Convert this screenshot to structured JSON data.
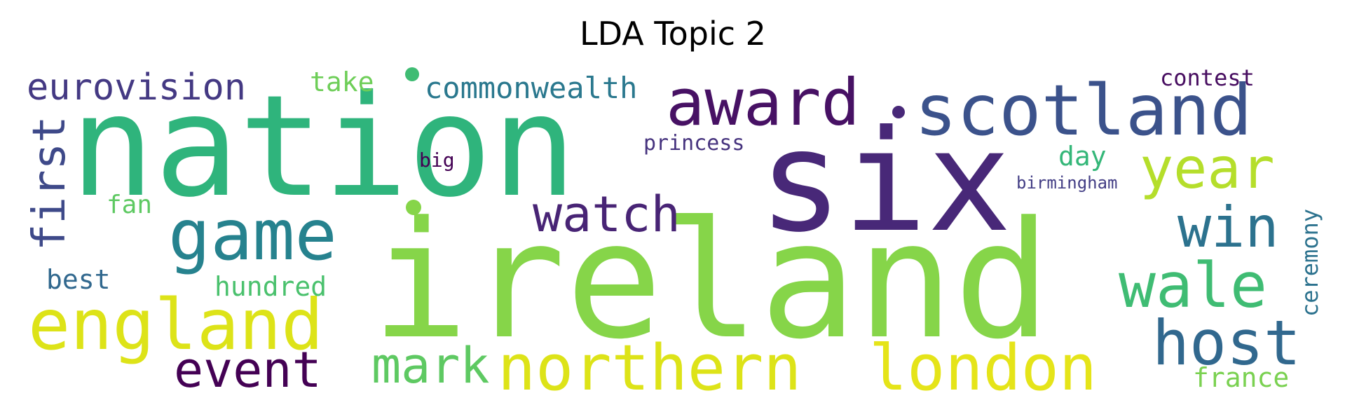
{
  "title": "LDA Topic 2",
  "words": [
    {
      "text": "nation",
      "color": "#2fb47c"
    },
    {
      "text": "ireland",
      "color": "#86d549"
    },
    {
      "text": "six",
      "color": "#482878"
    },
    {
      "text": "scotland",
      "color": "#3b528b"
    },
    {
      "text": "award",
      "color": "#471164"
    },
    {
      "text": "game",
      "color": "#26828e"
    },
    {
      "text": "england",
      "color": "#dde318"
    },
    {
      "text": "watch",
      "color": "#482475"
    },
    {
      "text": "year",
      "color": "#b5de2b"
    },
    {
      "text": "win",
      "color": "#2c728e"
    },
    {
      "text": "wale",
      "color": "#3fbc73"
    },
    {
      "text": "host",
      "color": "#31688e"
    },
    {
      "text": "northern",
      "color": "#dde318"
    },
    {
      "text": "london",
      "color": "#e5e419"
    },
    {
      "text": "mark",
      "color": "#5ec962"
    },
    {
      "text": "event",
      "color": "#440154"
    },
    {
      "text": "eurovision",
      "color": "#443983"
    },
    {
      "text": "first",
      "color": "#3e4989"
    },
    {
      "text": "commonwealth",
      "color": "#2a788e"
    },
    {
      "text": "take",
      "color": "#6ece58"
    },
    {
      "text": "contest",
      "color": "#470d60"
    },
    {
      "text": "princess",
      "color": "#46337e"
    },
    {
      "text": "big",
      "color": "#440154"
    },
    {
      "text": "day",
      "color": "#35b779"
    },
    {
      "text": "birmingham",
      "color": "#433e85"
    },
    {
      "text": "ceremony",
      "color": "#2c728e"
    },
    {
      "text": "fan",
      "color": "#5ec962"
    },
    {
      "text": "best",
      "color": "#31688e"
    },
    {
      "text": "hundred",
      "color": "#4ac16d"
    },
    {
      "text": "france",
      "color": "#7ad151"
    }
  ]
}
